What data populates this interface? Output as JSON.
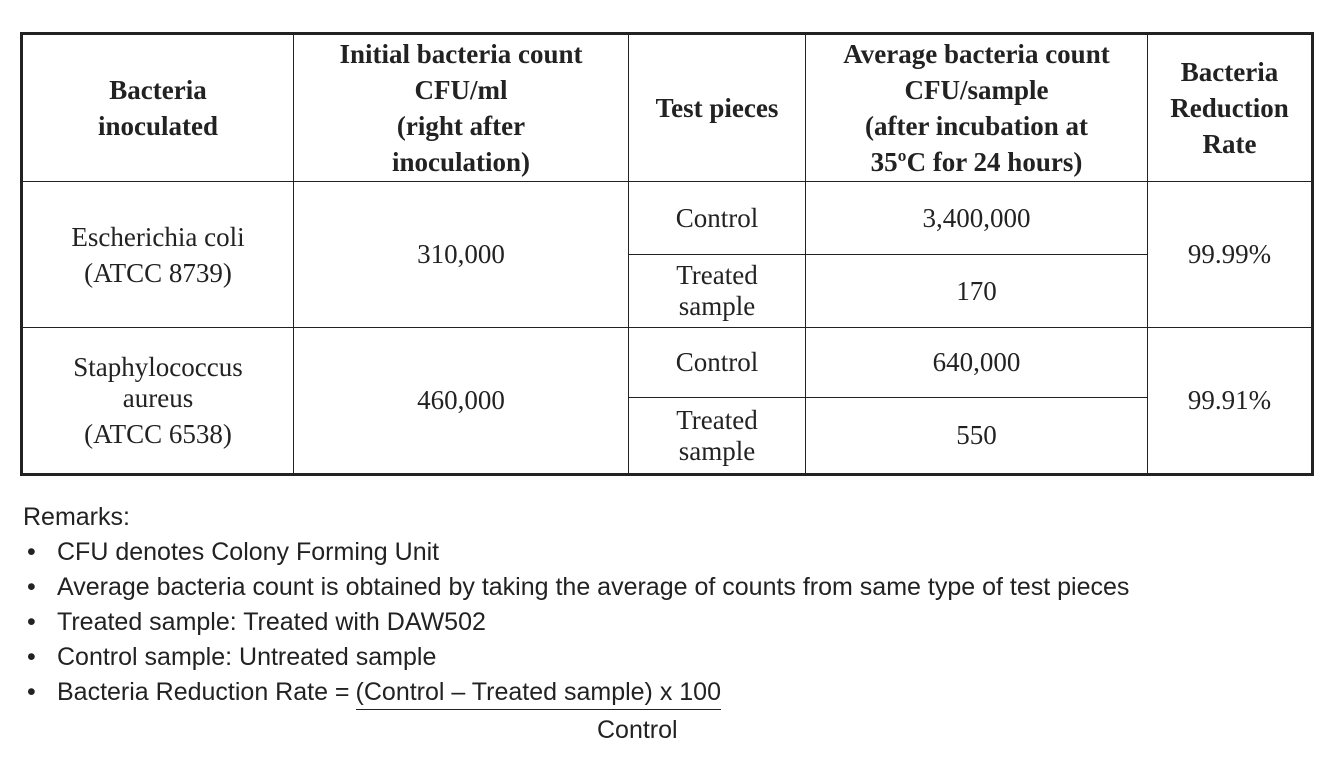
{
  "table": {
    "header": [
      [
        "Bacteria",
        "inoculated"
      ],
      [
        "Initial bacteria count",
        "CFU/ml",
        "(right after",
        "inoculation)"
      ],
      [
        "Test pieces"
      ],
      [
        "Average bacteria count",
        "CFU/sample",
        "(after incubation at",
        "35ºC for 24 hours)"
      ],
      [
        "Bacteria",
        "Reduction",
        "Rate"
      ]
    ],
    "rows": [
      {
        "organism": [
          "Escherichia coli",
          "(ATCC 8739)"
        ],
        "initial": "310,000",
        "tests": [
          {
            "piece": [
              "Control"
            ],
            "count": "3,400,000"
          },
          {
            "piece": [
              "Treated",
              "sample"
            ],
            "count": "170"
          }
        ],
        "rate": "99.99%"
      },
      {
        "organism": [
          "Staphylococcus",
          "aureus",
          "(ATCC 6538)"
        ],
        "initial": "460,000",
        "tests": [
          {
            "piece": [
              "Control"
            ],
            "count": "640,000"
          },
          {
            "piece": [
              "Treated",
              "sample"
            ],
            "count": "550"
          }
        ],
        "rate": "99.91%"
      }
    ]
  },
  "remarks": {
    "title": "Remarks:",
    "items": [
      "CFU denotes Colony Forming Unit",
      "Average bacteria count is obtained by taking the average of counts from same type of test pieces",
      "Treated sample: Treated with DAW502",
      "Control sample: Untreated sample"
    ],
    "formula": {
      "label": "Bacteria Reduction Rate =",
      "numerator": "(Control – Treated sample) x 100",
      "denominator": "Control"
    }
  }
}
